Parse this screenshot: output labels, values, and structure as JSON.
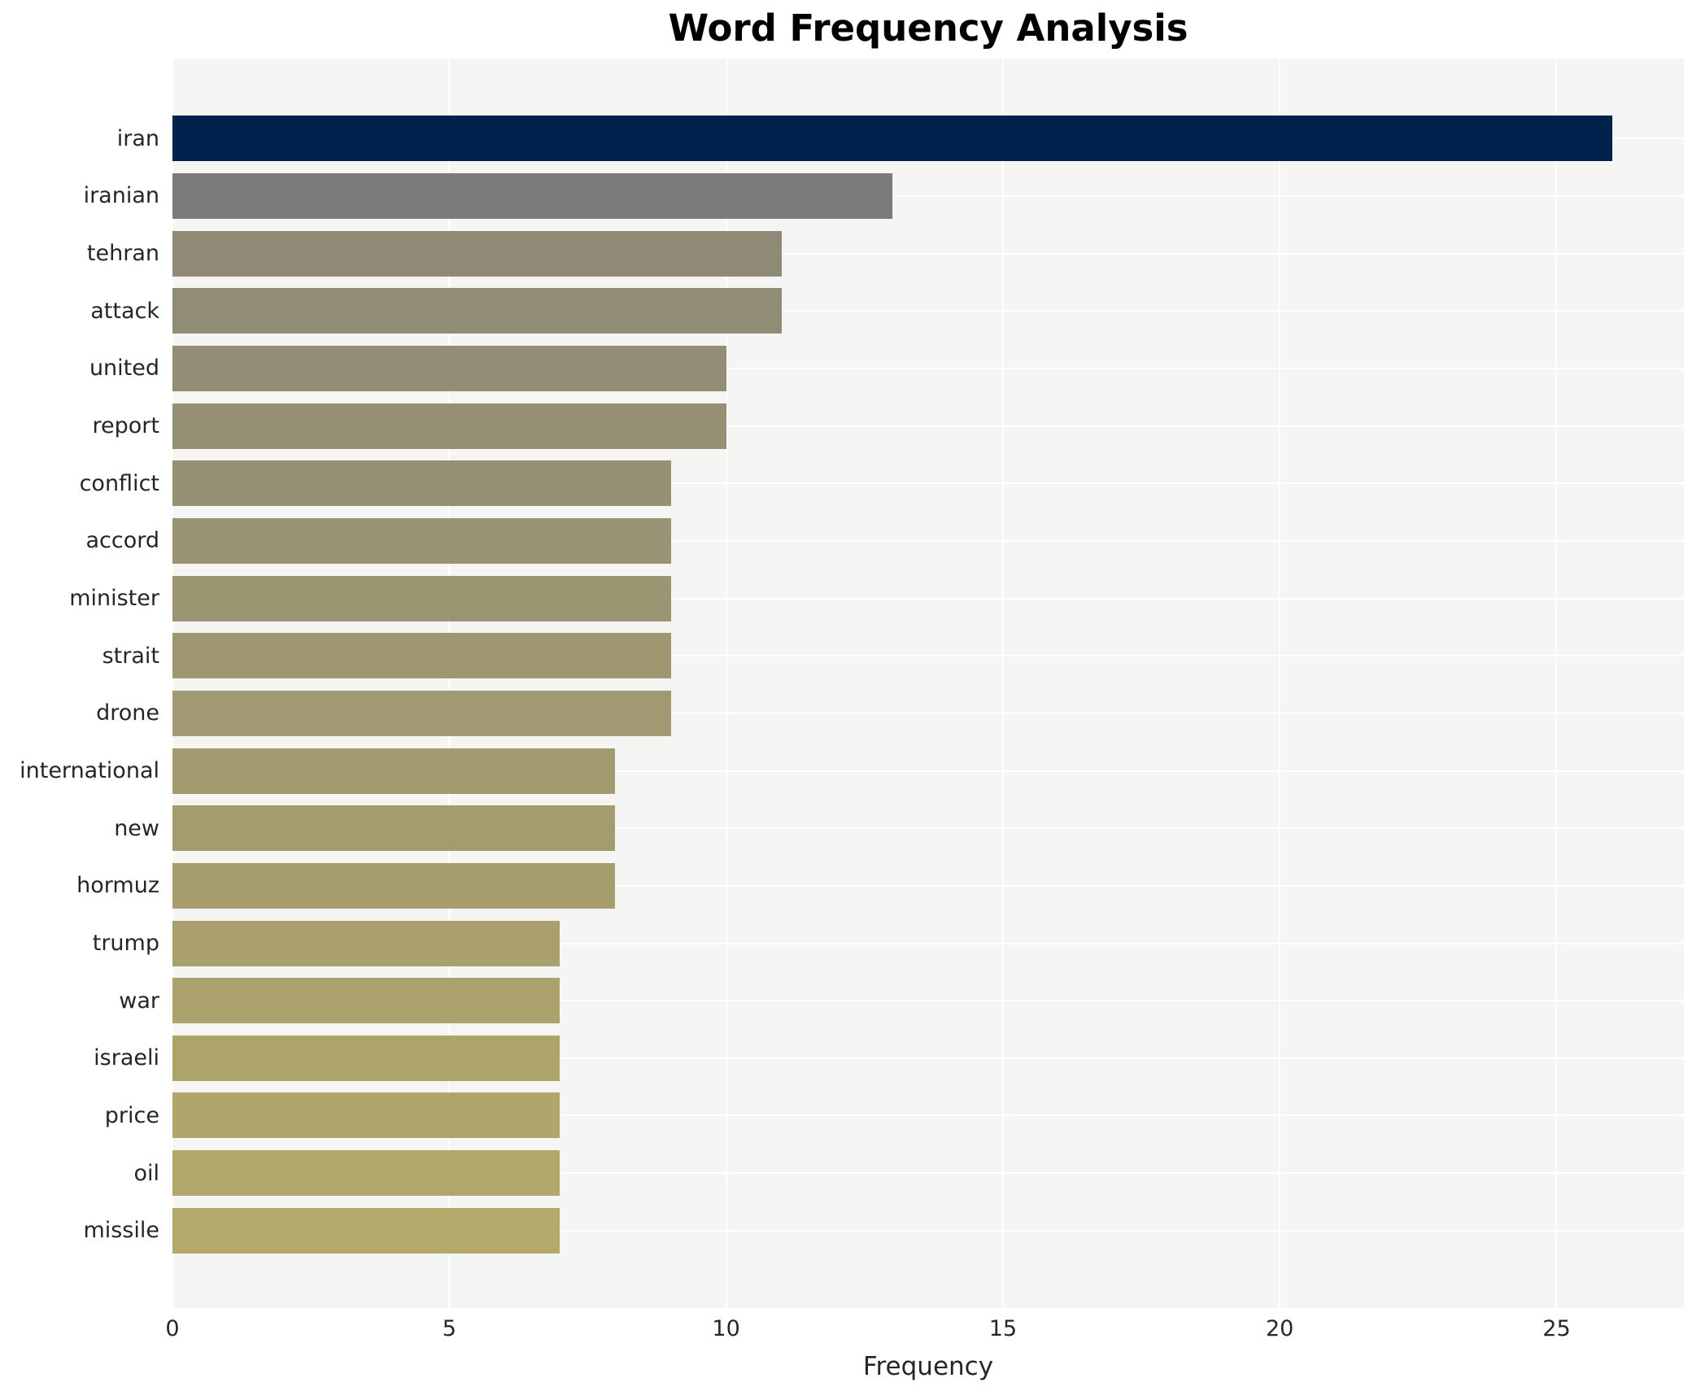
{
  "title": "Word Frequency Analysis",
  "chart_data": {
    "type": "bar",
    "orientation": "horizontal",
    "title": "Word Frequency Analysis",
    "xlabel": "Frequency",
    "ylabel": "",
    "xlim": [
      0,
      27.3
    ],
    "x_ticks": [
      0,
      5,
      10,
      15,
      20,
      25
    ],
    "grid": true,
    "legend": "none",
    "categories": [
      "iran",
      "iranian",
      "tehran",
      "attack",
      "united",
      "report",
      "conflict",
      "accord",
      "minister",
      "strait",
      "drone",
      "international",
      "new",
      "hormuz",
      "trump",
      "war",
      "israeli",
      "price",
      "oil",
      "missile"
    ],
    "values": [
      26,
      13,
      11,
      11,
      10,
      10,
      9,
      9,
      9,
      9,
      9,
      8,
      8,
      8,
      7,
      7,
      7,
      7,
      7,
      7
    ],
    "bar_colors": [
      "#00234e",
      "#7b7b79",
      "#8e8a76",
      "#908c75",
      "#928e75",
      "#958f74",
      "#979173",
      "#999373",
      "#9b9572",
      "#9e9771",
      "#a09971",
      "#a29b70",
      "#a49c6f",
      "#a79e6e",
      "#a9a06e",
      "#aba26d",
      "#ada46c",
      "#b0a56b",
      "#b2a76b",
      "#b4a96a"
    ],
    "colors": {
      "panel_background": "#f5f5f3",
      "page_background": "#ffffff",
      "gridline": "#ffffff",
      "text": "#262626",
      "title_text": "#000000"
    }
  }
}
